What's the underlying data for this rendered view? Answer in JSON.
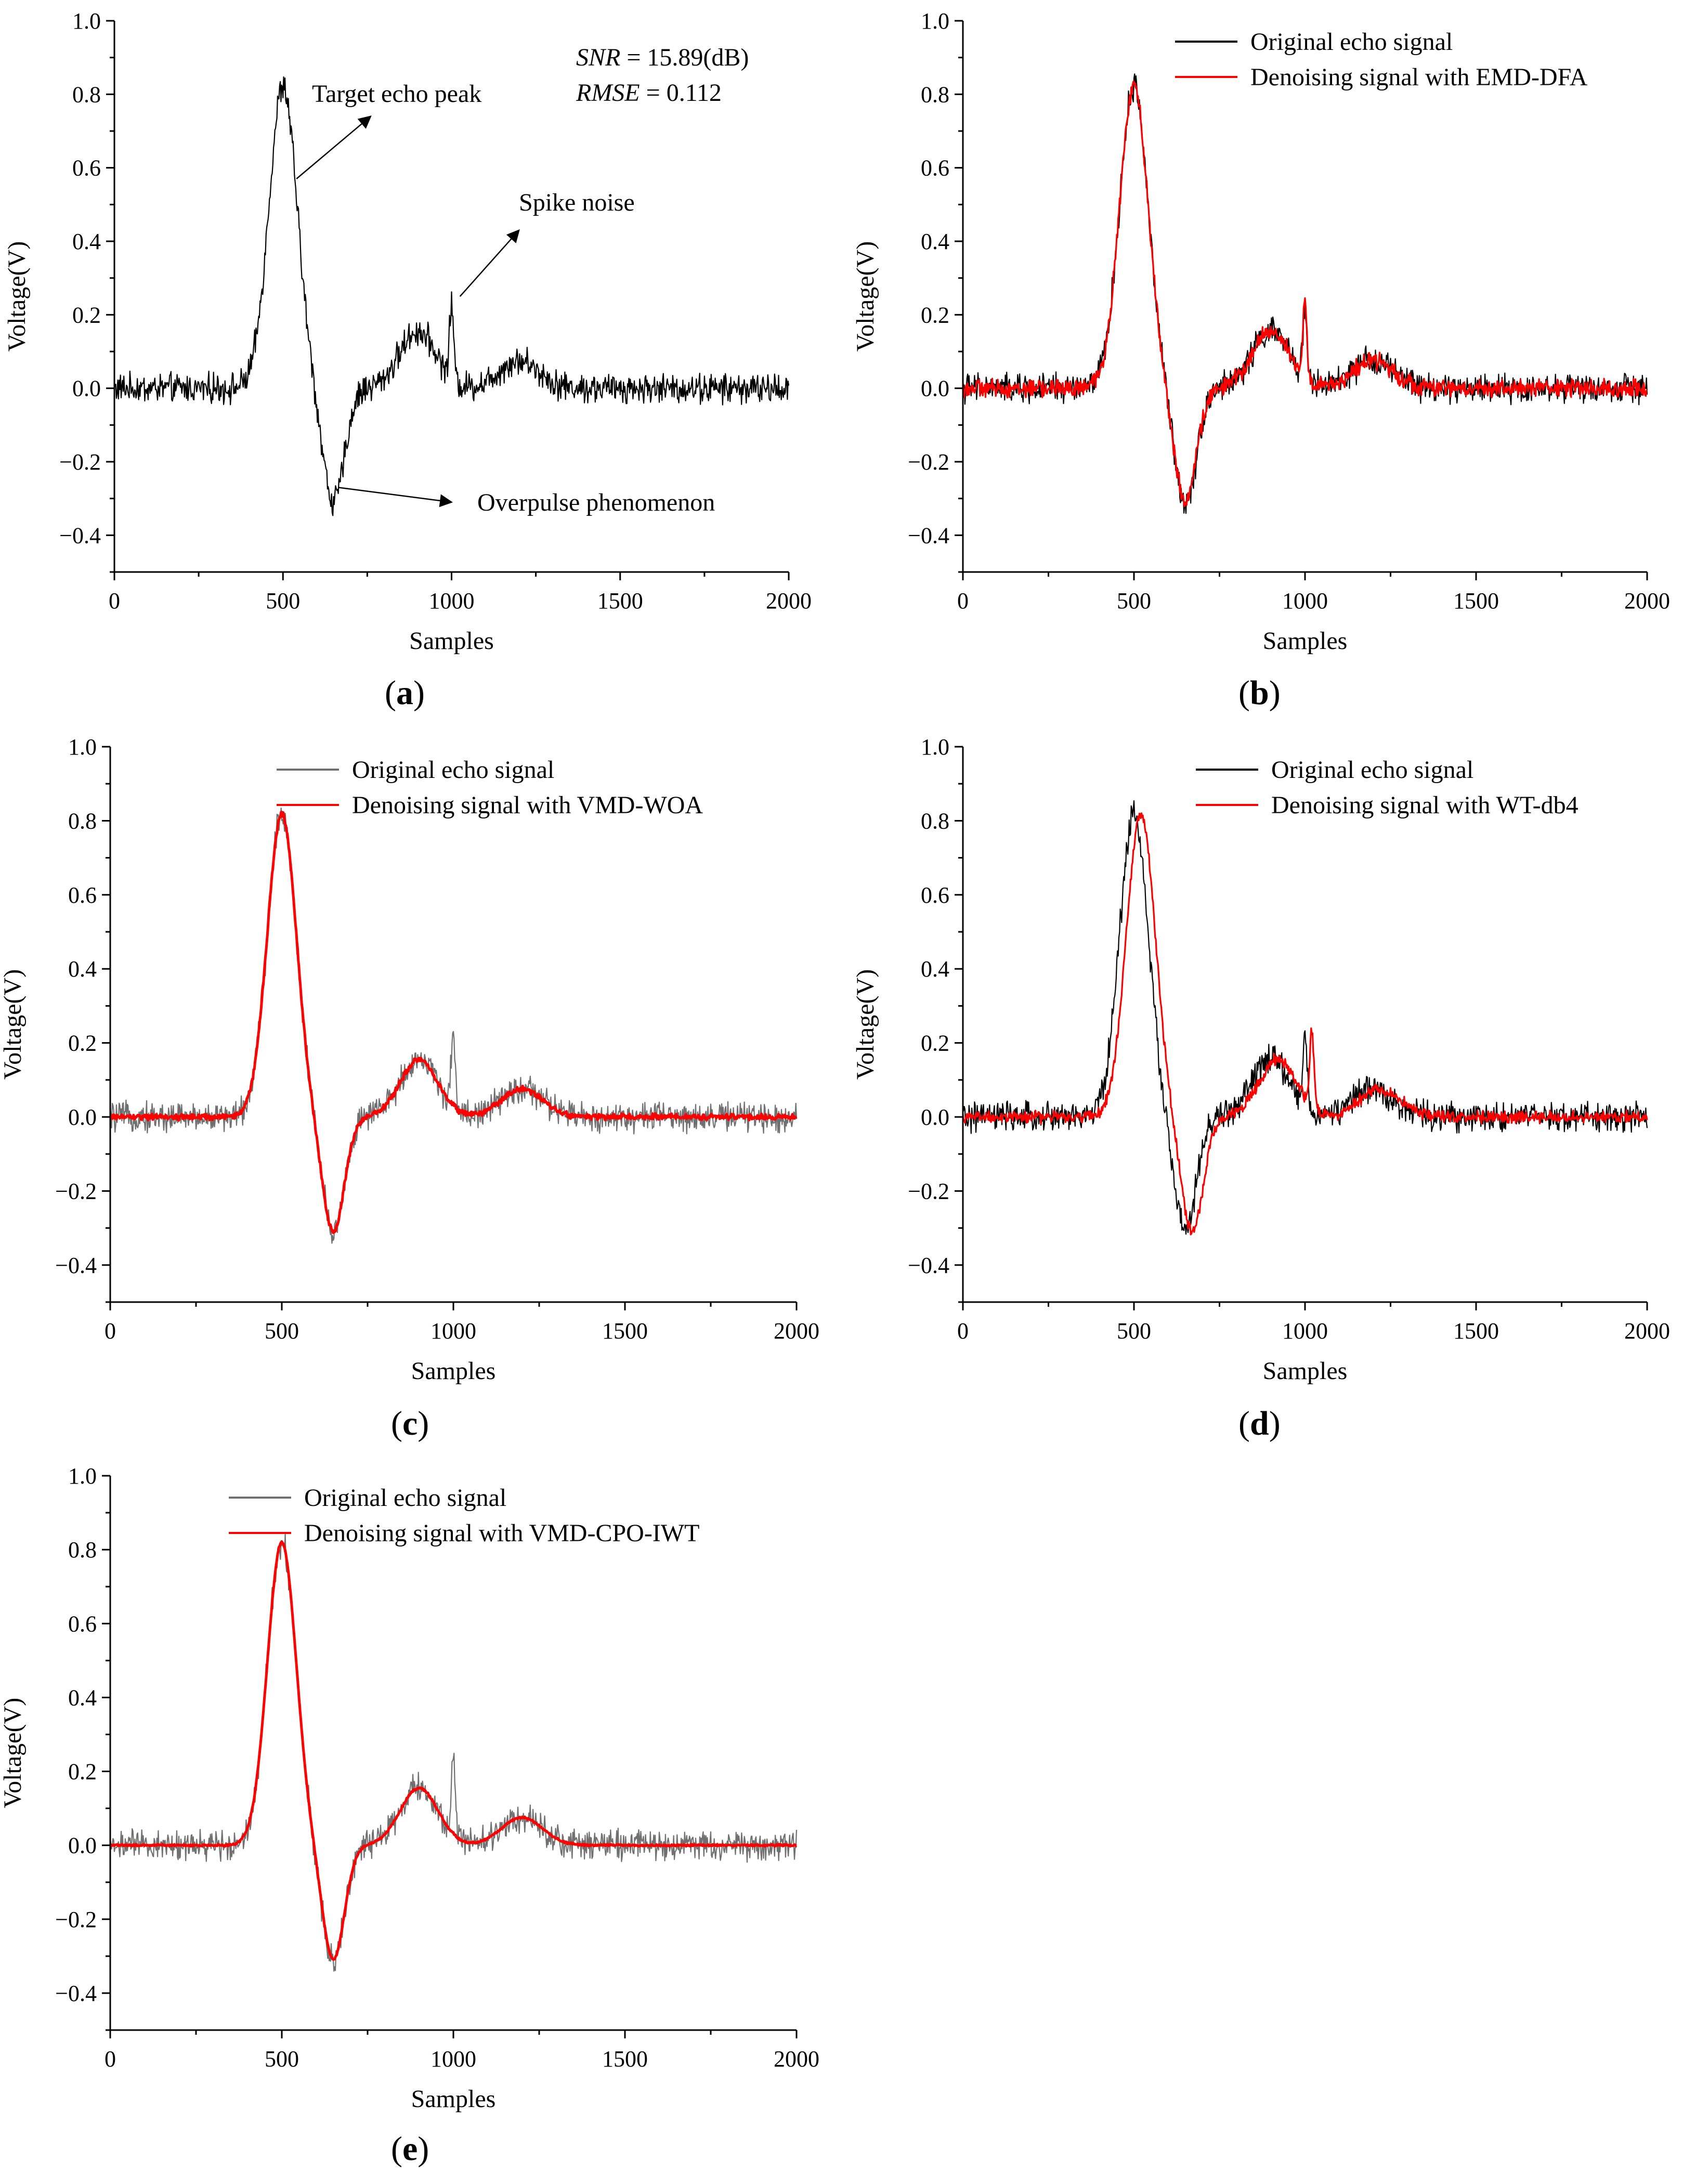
{
  "figure": {
    "captions": [
      "(a)",
      "(b)",
      "(c)",
      "(d)",
      "(e)"
    ],
    "caption_letters": [
      "a",
      "b",
      "c",
      "d",
      "e"
    ]
  },
  "chart_data": [
    {
      "type": "line",
      "panel": "a",
      "xlabel": "Samples",
      "ylabel": "Voltage(V)",
      "xlim": [
        0,
        2000
      ],
      "ylim": [
        -0.5,
        1.0
      ],
      "xticks": [
        0,
        500,
        1000,
        1500,
        2000
      ],
      "yticks": [
        -0.4,
        -0.2,
        0.0,
        0.2,
        0.4,
        0.6,
        0.8,
        1.0
      ],
      "ytick_labels": [
        "−0.4",
        "−0.2",
        "0.0",
        "0.2",
        "0.4",
        "0.6",
        "0.8",
        "1.0"
      ],
      "metrics": {
        "snr_label": "SNR",
        "snr_value": " = 15.89(dB)",
        "rmse_label": "RMSE",
        "rmse_value": " = 0.112"
      },
      "annotations": [
        {
          "text": "Target echo peak",
          "x": 500,
          "y": 0.85
        },
        {
          "text": "Spike noise",
          "x": 1000,
          "y": 0.32
        },
        {
          "text": "Overpulse phenomenon",
          "x": 650,
          "y": -0.33
        }
      ],
      "series": [
        {
          "name": "Original echo signal",
          "color": "#000000",
          "noise": 0.03,
          "legend": false
        }
      ]
    },
    {
      "type": "line",
      "panel": "b",
      "xlabel": "Samples",
      "ylabel": "Voltage(V)",
      "xlim": [
        0,
        2000
      ],
      "ylim": [
        -0.5,
        1.0
      ],
      "xticks": [
        0,
        500,
        1000,
        1500,
        2000
      ],
      "yticks": [
        -0.4,
        -0.2,
        0.0,
        0.2,
        0.4,
        0.6,
        0.8,
        1.0
      ],
      "ytick_labels": [
        "−0.4",
        "−0.2",
        "0.0",
        "0.2",
        "0.4",
        "0.6",
        "0.8",
        "1.0"
      ],
      "series": [
        {
          "name": "Original echo signal",
          "color": "#000000",
          "noise": 0.03,
          "legend": true
        },
        {
          "name": "Denoising signal with EMD-DFA",
          "color": "#ff0000",
          "noise": 0.018,
          "legend": true
        }
      ]
    },
    {
      "type": "line",
      "panel": "c",
      "xlabel": "Samples",
      "ylabel": "Voltage(V)",
      "xlim": [
        0,
        2000
      ],
      "ylim": [
        -0.5,
        1.0
      ],
      "xticks": [
        0,
        500,
        1000,
        1500,
        2000
      ],
      "yticks": [
        -0.4,
        -0.2,
        0.0,
        0.2,
        0.4,
        0.6,
        0.8,
        1.0
      ],
      "ytick_labels": [
        "−0.4",
        "−0.2",
        "0.0",
        "0.2",
        "0.4",
        "0.6",
        "0.8",
        "1.0"
      ],
      "series": [
        {
          "name": "Original echo signal",
          "color": "#707070",
          "noise": 0.03,
          "legend": true
        },
        {
          "name": "Denoising signal with VMD-WOA",
          "color": "#ff0000",
          "noise": 0.006,
          "smooth": true,
          "legend": true
        }
      ]
    },
    {
      "type": "line",
      "panel": "d",
      "xlabel": "Samples",
      "ylabel": "Voltage(V)",
      "xlim": [
        0,
        2000
      ],
      "ylim": [
        -0.5,
        1.0
      ],
      "xticks": [
        0,
        500,
        1000,
        1500,
        2000
      ],
      "yticks": [
        -0.4,
        -0.2,
        0.0,
        0.2,
        0.4,
        0.6,
        0.8,
        1.0
      ],
      "ytick_labels": [
        "−0.4",
        "−0.2",
        "0.0",
        "0.2",
        "0.4",
        "0.6",
        "0.8",
        "1.0"
      ],
      "series": [
        {
          "name": "Original echo signal",
          "color": "#000000",
          "noise": 0.03,
          "legend": true
        },
        {
          "name": "Denoising signal with WT-db4",
          "color": "#ff0000",
          "noise": 0.012,
          "shift": 20,
          "legend": true
        }
      ]
    },
    {
      "type": "line",
      "panel": "e",
      "xlabel": "Samples",
      "ylabel": "Voltage(V)",
      "xlim": [
        0,
        2000
      ],
      "ylim": [
        -0.5,
        1.0
      ],
      "xticks": [
        0,
        500,
        1000,
        1500,
        2000
      ],
      "yticks": [
        -0.4,
        -0.2,
        0.0,
        0.2,
        0.4,
        0.6,
        0.8,
        1.0
      ],
      "ytick_labels": [
        "−0.4",
        "−0.2",
        "0.0",
        "0.2",
        "0.4",
        "0.6",
        "0.8",
        "1.0"
      ],
      "series": [
        {
          "name": "Original echo signal",
          "color": "#707070",
          "noise": 0.03,
          "legend": true
        },
        {
          "name": "Denoising signal with VMD-CPO-IWT",
          "color": "#ff0000",
          "noise": 0.002,
          "smooth": true,
          "legend": true
        }
      ]
    }
  ]
}
